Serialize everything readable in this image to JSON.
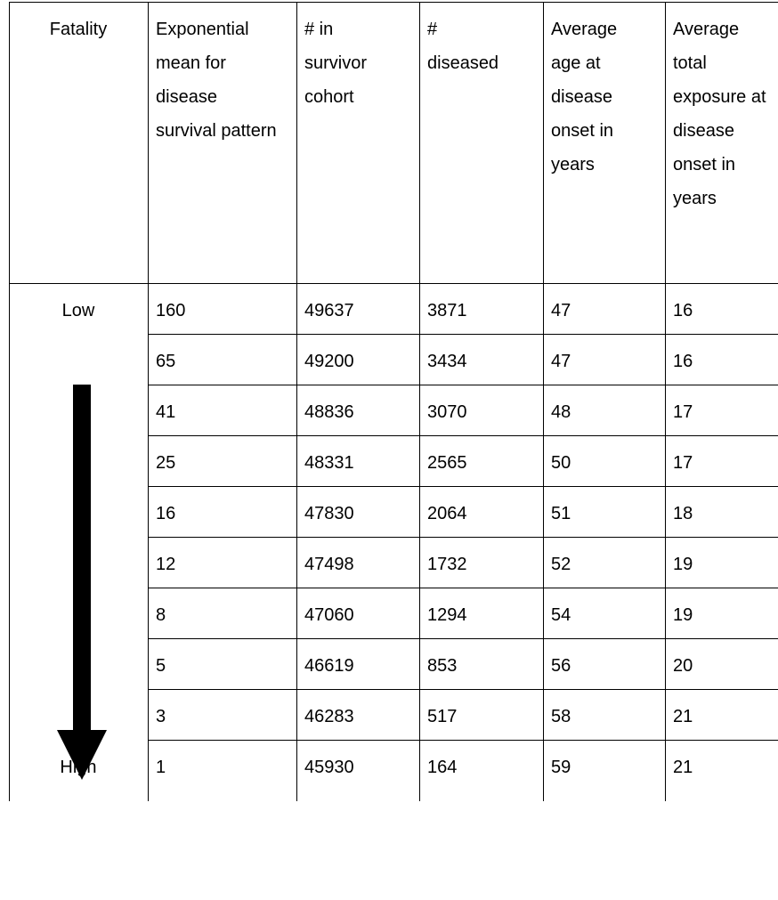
{
  "table": {
    "header": [
      "Fatality",
      "Exponential mean for disease survival pattern",
      "# in survivor cohort",
      "# diseased",
      "Average age at disease onset in years",
      "Average total exposure at disease onset in years"
    ],
    "fatality_labels": {
      "top": "Low",
      "bottom": "High"
    },
    "rows": [
      [
        "160",
        "49637",
        "3871",
        "47",
        "16"
      ],
      [
        "65",
        "49200",
        "3434",
        "47",
        "16"
      ],
      [
        "41",
        "48836",
        "3070",
        "48",
        "17"
      ],
      [
        "25",
        "48331",
        "2565",
        "50",
        "17"
      ],
      [
        "16",
        "47830",
        "2064",
        "51",
        "18"
      ],
      [
        "12",
        "47498",
        "1732",
        "52",
        "19"
      ],
      [
        "8",
        "47060",
        "1294",
        "54",
        "19"
      ],
      [
        "5",
        "46619",
        "853",
        "56",
        "20"
      ],
      [
        "3",
        "46283",
        "517",
        "58",
        "21"
      ],
      [
        "1",
        "45930",
        "164",
        "59",
        "21"
      ]
    ]
  }
}
